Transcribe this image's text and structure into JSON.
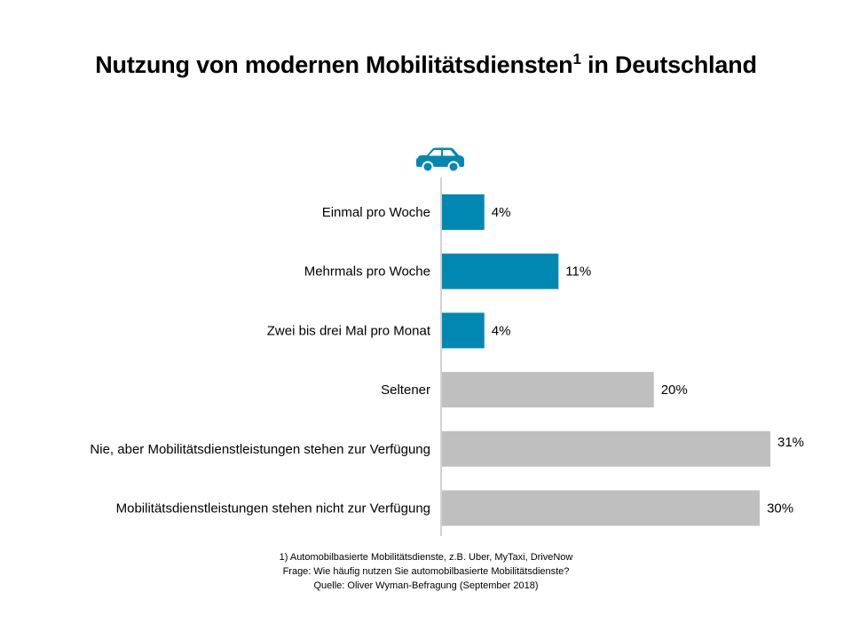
{
  "title": {
    "main": "Nutzung von modernen Mobilitätsdiensten",
    "superscript": "1",
    "suffix": " in Deutschland"
  },
  "icon": "car-icon",
  "colors": {
    "highlight": "#0088B3",
    "neutral": "#BFBFBF",
    "axis": "#A6A6A6"
  },
  "chart_data": {
    "type": "bar",
    "orientation": "horizontal",
    "categories": [
      "Einmal pro Woche",
      "Mehrmals pro Woche",
      "Zwei bis drei Mal pro Monat",
      "Seltener",
      "Nie, aber Mobilitätsdienstleistungen stehen zur Verfügung",
      "Mobilitätsdienstleistungen stehen nicht zur Verfügung"
    ],
    "values": [
      4,
      11,
      4,
      20,
      31,
      30
    ],
    "value_labels": [
      "4%",
      "11%",
      "4%",
      "20%",
      "31%",
      "30%"
    ],
    "highlight": [
      true,
      true,
      true,
      false,
      false,
      false
    ],
    "unit": "%",
    "xlim": [
      0,
      31
    ],
    "grid": false,
    "legend": "none"
  },
  "footnotes": {
    "note1": "1) Automobilbasierte Mobilitätsdienste, z.B. Uber, MyTaxi, DriveNow",
    "question": "Frage: Wie häufig nutzen Sie automobilbasierte Mobilitätsdienste?",
    "source": "Quelle: Oliver Wyman-Befragung (September 2018)"
  }
}
